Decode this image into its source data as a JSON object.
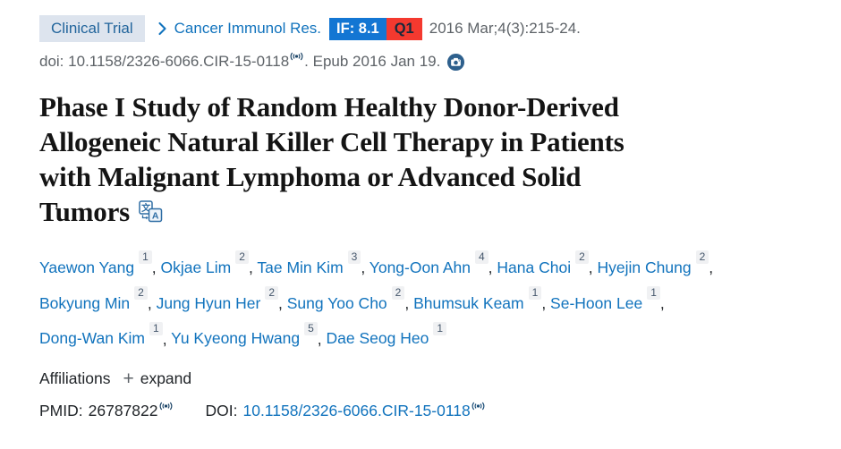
{
  "header": {
    "type_badge": "Clinical Trial",
    "journal": "Cancer Immunol Res.",
    "impact_factor": "IF: 8.1",
    "quartile": "Q1",
    "citation": "2016 Mar;4(3):215-24.",
    "doi_line": {
      "label": "doi:",
      "value": "10.1158/2326-6066.CIR-15-0118",
      "suffix": ". Epub 2016 Jan 19."
    }
  },
  "title": {
    "lines": [
      "Phase I Study of Random Healthy Donor-Derived",
      "Allogeneic Natural Killer Cell Therapy in Patients",
      "with Malignant Lymphoma or Advanced Solid",
      "Tumors"
    ]
  },
  "authors": [
    {
      "name": "Yaewon Yang",
      "sup": "1"
    },
    {
      "name": "Okjae Lim",
      "sup": "2"
    },
    {
      "name": "Tae Min Kim",
      "sup": "3"
    },
    {
      "name": "Yong-Oon Ahn",
      "sup": "4"
    },
    {
      "name": "Hana Choi",
      "sup": "2"
    },
    {
      "name": "Hyejin Chung",
      "sup": "2",
      "break_after": true
    },
    {
      "name": "Bokyung Min",
      "sup": "2"
    },
    {
      "name": "Jung Hyun Her",
      "sup": "2"
    },
    {
      "name": "Sung Yoo Cho",
      "sup": "2"
    },
    {
      "name": "Bhumsuk Keam",
      "sup": "1"
    },
    {
      "name": "Se-Hoon Lee",
      "sup": "1",
      "break_after": true
    },
    {
      "name": "Dong-Wan Kim",
      "sup": "1"
    },
    {
      "name": "Yu Kyeong Hwang",
      "sup": "5"
    },
    {
      "name": "Dae Seog Heo",
      "sup": "1"
    }
  ],
  "affiliations": {
    "label": "Affiliations",
    "expand_label": "expand"
  },
  "identifiers": {
    "pmid_label": "PMID:",
    "pmid": "26787822",
    "doi_label": "DOI:",
    "doi_link": "10.1158/2326-6066.CIR-15-0118"
  },
  "icons": {
    "chevron": "›",
    "plus": "+",
    "signal": "((•))",
    "camera": "camera badge",
    "translate": "文/A translate"
  },
  "colors": {
    "link_blue": "#1173bd",
    "type_badge_bg": "#dde4ee",
    "type_badge_text": "#22659c",
    "impact_factor_bg": "#1376d3",
    "quartile_bg": "#f4392f",
    "gray_text": "#5e6368",
    "dark_text": "#212529",
    "signal_icon": "#1d4568",
    "camera_bg": "#2e608d"
  }
}
